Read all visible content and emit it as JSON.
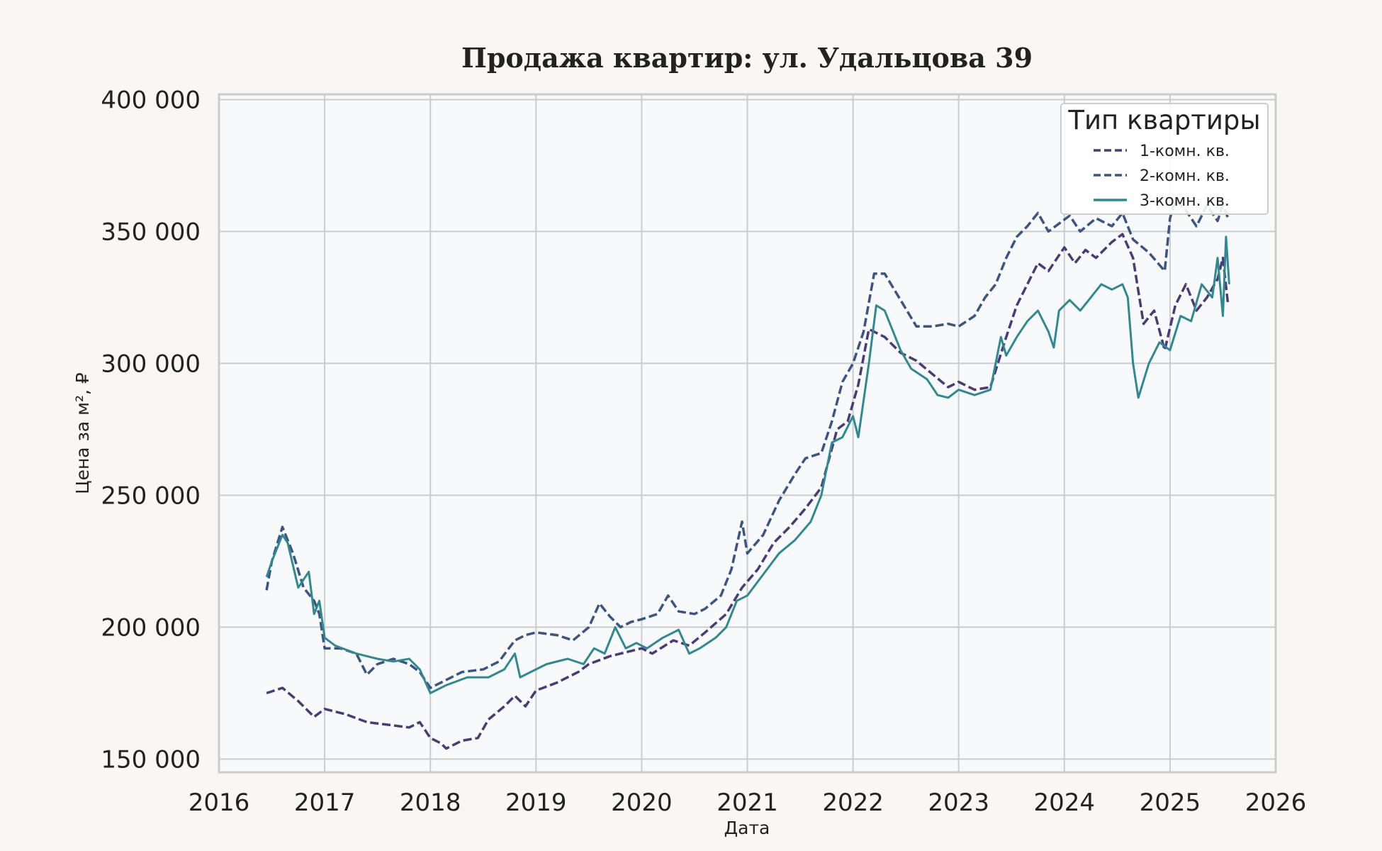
{
  "chart_data": {
    "type": "line",
    "title": "Продажа квартир: ул. Удальцова 39",
    "xlabel": "Дата",
    "ylabel": "Цена за м², ₽",
    "xlim": [
      2016.0,
      2026.0
    ],
    "ylim": [
      145000,
      402000
    ],
    "grid": true,
    "legend_title": "Тип квартиры",
    "legend_position": "top-right",
    "x_ticks": [
      2016,
      2017,
      2018,
      2019,
      2020,
      2021,
      2022,
      2023,
      2024,
      2025,
      2026
    ],
    "x_tick_labels": [
      "2016",
      "2017",
      "2018",
      "2019",
      "2020",
      "2021",
      "2022",
      "2023",
      "2024",
      "2025",
      "2026"
    ],
    "y_ticks": [
      150000,
      200000,
      250000,
      300000,
      350000,
      400000
    ],
    "y_tick_labels": [
      "150 000",
      "200 000",
      "250 000",
      "300 000",
      "350 000",
      "400 000"
    ],
    "series": [
      {
        "name": "1-комн. кв.",
        "color": "#4a3a7a",
        "style": "dashed",
        "points": [
          [
            2016.45,
            175000
          ],
          [
            2016.6,
            177000
          ],
          [
            2016.75,
            172000
          ],
          [
            2016.9,
            166000
          ],
          [
            2017.0,
            169000
          ],
          [
            2017.2,
            167000
          ],
          [
            2017.4,
            164000
          ],
          [
            2017.6,
            163000
          ],
          [
            2017.8,
            162000
          ],
          [
            2017.9,
            164000
          ],
          [
            2018.0,
            158000
          ],
          [
            2018.1,
            156000
          ],
          [
            2018.15,
            154000
          ],
          [
            2018.3,
            157000
          ],
          [
            2018.45,
            158000
          ],
          [
            2018.55,
            165000
          ],
          [
            2018.7,
            170000
          ],
          [
            2018.8,
            174000
          ],
          [
            2018.9,
            170000
          ],
          [
            2019.0,
            176000
          ],
          [
            2019.2,
            179000
          ],
          [
            2019.4,
            183000
          ],
          [
            2019.5,
            186000
          ],
          [
            2019.7,
            189000
          ],
          [
            2019.9,
            191000
          ],
          [
            2020.0,
            192000
          ],
          [
            2020.1,
            190000
          ],
          [
            2020.3,
            195000
          ],
          [
            2020.45,
            193000
          ],
          [
            2020.6,
            198000
          ],
          [
            2020.8,
            205000
          ],
          [
            2020.95,
            215000
          ],
          [
            2021.1,
            222000
          ],
          [
            2021.25,
            232000
          ],
          [
            2021.4,
            238000
          ],
          [
            2021.55,
            245000
          ],
          [
            2021.7,
            253000
          ],
          [
            2021.85,
            275000
          ],
          [
            2021.95,
            278000
          ],
          [
            2022.05,
            292000
          ],
          [
            2022.15,
            313000
          ],
          [
            2022.3,
            310000
          ],
          [
            2022.45,
            304000
          ],
          [
            2022.6,
            301000
          ],
          [
            2022.75,
            296000
          ],
          [
            2022.9,
            291000
          ],
          [
            2023.0,
            293000
          ],
          [
            2023.15,
            290000
          ],
          [
            2023.3,
            291000
          ],
          [
            2023.45,
            310000
          ],
          [
            2023.55,
            322000
          ],
          [
            2023.65,
            330000
          ],
          [
            2023.75,
            338000
          ],
          [
            2023.85,
            335000
          ],
          [
            2024.0,
            344000
          ],
          [
            2024.1,
            338000
          ],
          [
            2024.2,
            343000
          ],
          [
            2024.3,
            340000
          ],
          [
            2024.45,
            346000
          ],
          [
            2024.55,
            349000
          ],
          [
            2024.65,
            340000
          ],
          [
            2024.75,
            315000
          ],
          [
            2024.85,
            320000
          ],
          [
            2024.95,
            305000
          ],
          [
            2025.05,
            322000
          ],
          [
            2025.15,
            330000
          ],
          [
            2025.25,
            320000
          ],
          [
            2025.35,
            325000
          ],
          [
            2025.45,
            332000
          ],
          [
            2025.5,
            340000
          ],
          [
            2025.55,
            322000
          ]
        ]
      },
      {
        "name": "2-комн. кв.",
        "color": "#3a5585",
        "style": "dashed",
        "points": [
          [
            2016.45,
            214000
          ],
          [
            2016.5,
            225000
          ],
          [
            2016.6,
            238000
          ],
          [
            2016.7,
            228000
          ],
          [
            2016.8,
            215000
          ],
          [
            2016.9,
            210000
          ],
          [
            2016.95,
            205000
          ],
          [
            2017.0,
            192000
          ],
          [
            2017.15,
            192000
          ],
          [
            2017.3,
            190000
          ],
          [
            2017.4,
            182000
          ],
          [
            2017.5,
            186000
          ],
          [
            2017.65,
            188000
          ],
          [
            2017.8,
            186000
          ],
          [
            2017.9,
            183000
          ],
          [
            2018.0,
            177000
          ],
          [
            2018.15,
            180000
          ],
          [
            2018.3,
            183000
          ],
          [
            2018.5,
            184000
          ],
          [
            2018.65,
            187000
          ],
          [
            2018.8,
            195000
          ],
          [
            2018.9,
            197000
          ],
          [
            2019.0,
            198000
          ],
          [
            2019.2,
            197000
          ],
          [
            2019.35,
            195000
          ],
          [
            2019.5,
            200000
          ],
          [
            2019.6,
            209000
          ],
          [
            2019.7,
            204000
          ],
          [
            2019.8,
            200000
          ],
          [
            2019.9,
            202000
          ],
          [
            2020.0,
            203000
          ],
          [
            2020.15,
            205000
          ],
          [
            2020.25,
            212000
          ],
          [
            2020.35,
            206000
          ],
          [
            2020.5,
            205000
          ],
          [
            2020.6,
            207000
          ],
          [
            2020.75,
            212000
          ],
          [
            2020.85,
            222000
          ],
          [
            2020.95,
            240000
          ],
          [
            2021.0,
            228000
          ],
          [
            2021.15,
            235000
          ],
          [
            2021.3,
            248000
          ],
          [
            2021.45,
            258000
          ],
          [
            2021.55,
            264000
          ],
          [
            2021.7,
            266000
          ],
          [
            2021.8,
            278000
          ],
          [
            2021.9,
            293000
          ],
          [
            2022.0,
            300000
          ],
          [
            2022.1,
            312000
          ],
          [
            2022.2,
            334000
          ],
          [
            2022.3,
            334000
          ],
          [
            2022.45,
            324000
          ],
          [
            2022.6,
            314000
          ],
          [
            2022.75,
            314000
          ],
          [
            2022.9,
            315000
          ],
          [
            2023.0,
            314000
          ],
          [
            2023.15,
            318000
          ],
          [
            2023.25,
            325000
          ],
          [
            2023.35,
            330000
          ],
          [
            2023.45,
            340000
          ],
          [
            2023.55,
            348000
          ],
          [
            2023.65,
            352000
          ],
          [
            2023.75,
            357000
          ],
          [
            2023.85,
            350000
          ],
          [
            2023.95,
            353000
          ],
          [
            2024.05,
            356000
          ],
          [
            2024.15,
            350000
          ],
          [
            2024.3,
            355000
          ],
          [
            2024.45,
            352000
          ],
          [
            2024.55,
            357000
          ],
          [
            2024.65,
            347000
          ],
          [
            2024.8,
            342000
          ],
          [
            2024.95,
            335000
          ],
          [
            2025.0,
            355000
          ],
          [
            2025.05,
            362000
          ],
          [
            2025.15,
            358000
          ],
          [
            2025.25,
            352000
          ],
          [
            2025.35,
            360000
          ],
          [
            2025.45,
            354000
          ],
          [
            2025.5,
            360000
          ],
          [
            2025.55,
            355000
          ]
        ]
      },
      {
        "name": "3-комн. кв.",
        "color": "#2e8a90",
        "style": "solid",
        "points": [
          [
            2016.45,
            219000
          ],
          [
            2016.5,
            225000
          ],
          [
            2016.6,
            235000
          ],
          [
            2016.65,
            232000
          ],
          [
            2016.75,
            215000
          ],
          [
            2016.85,
            221000
          ],
          [
            2016.9,
            205000
          ],
          [
            2016.95,
            210000
          ],
          [
            2017.0,
            196000
          ],
          [
            2017.1,
            193000
          ],
          [
            2017.3,
            190000
          ],
          [
            2017.5,
            188000
          ],
          [
            2017.65,
            187000
          ],
          [
            2017.8,
            188000
          ],
          [
            2017.9,
            184000
          ],
          [
            2018.0,
            175000
          ],
          [
            2018.15,
            178000
          ],
          [
            2018.35,
            181000
          ],
          [
            2018.55,
            181000
          ],
          [
            2018.7,
            184000
          ],
          [
            2018.8,
            190000
          ],
          [
            2018.85,
            181000
          ],
          [
            2018.95,
            183000
          ],
          [
            2019.1,
            186000
          ],
          [
            2019.3,
            188000
          ],
          [
            2019.45,
            186000
          ],
          [
            2019.55,
            192000
          ],
          [
            2019.65,
            190000
          ],
          [
            2019.75,
            200000
          ],
          [
            2019.85,
            192000
          ],
          [
            2019.95,
            194000
          ],
          [
            2020.05,
            192000
          ],
          [
            2020.2,
            196000
          ],
          [
            2020.35,
            199000
          ],
          [
            2020.45,
            190000
          ],
          [
            2020.55,
            192000
          ],
          [
            2020.7,
            196000
          ],
          [
            2020.8,
            200000
          ],
          [
            2020.9,
            210000
          ],
          [
            2021.0,
            212000
          ],
          [
            2021.15,
            220000
          ],
          [
            2021.3,
            228000
          ],
          [
            2021.45,
            233000
          ],
          [
            2021.6,
            240000
          ],
          [
            2021.7,
            250000
          ],
          [
            2021.8,
            270000
          ],
          [
            2021.9,
            272000
          ],
          [
            2022.0,
            280000
          ],
          [
            2022.05,
            272000
          ],
          [
            2022.15,
            300000
          ],
          [
            2022.22,
            322000
          ],
          [
            2022.3,
            320000
          ],
          [
            2022.45,
            305000
          ],
          [
            2022.55,
            298000
          ],
          [
            2022.7,
            294000
          ],
          [
            2022.8,
            288000
          ],
          [
            2022.9,
            287000
          ],
          [
            2023.0,
            290000
          ],
          [
            2023.15,
            288000
          ],
          [
            2023.3,
            290000
          ],
          [
            2023.4,
            310000
          ],
          [
            2023.45,
            303000
          ],
          [
            2023.55,
            310000
          ],
          [
            2023.65,
            316000
          ],
          [
            2023.75,
            320000
          ],
          [
            2023.85,
            312000
          ],
          [
            2023.9,
            306000
          ],
          [
            2023.95,
            320000
          ],
          [
            2024.05,
            324000
          ],
          [
            2024.15,
            320000
          ],
          [
            2024.25,
            325000
          ],
          [
            2024.35,
            330000
          ],
          [
            2024.45,
            328000
          ],
          [
            2024.55,
            330000
          ],
          [
            2024.6,
            325000
          ],
          [
            2024.65,
            300000
          ],
          [
            2024.7,
            287000
          ],
          [
            2024.8,
            300000
          ],
          [
            2024.9,
            308000
          ],
          [
            2025.0,
            305000
          ],
          [
            2025.1,
            318000
          ],
          [
            2025.2,
            316000
          ],
          [
            2025.3,
            330000
          ],
          [
            2025.4,
            325000
          ],
          [
            2025.45,
            340000
          ],
          [
            2025.5,
            318000
          ],
          [
            2025.53,
            348000
          ],
          [
            2025.56,
            330000
          ]
        ]
      }
    ]
  }
}
